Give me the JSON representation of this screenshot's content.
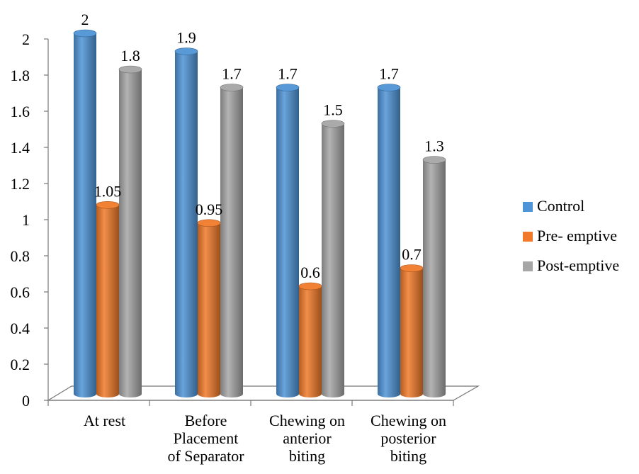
{
  "chart_data": {
    "type": "bar",
    "style": "3d-cylinder",
    "categories": [
      [
        "At rest"
      ],
      [
        "Before",
        "Placement",
        "of Separator"
      ],
      [
        "Chewing on",
        "anterior",
        "biting"
      ],
      [
        "Chewing on",
        "posterior",
        "biting"
      ]
    ],
    "series": [
      {
        "name": "Control",
        "color": "#4f94d6",
        "values": [
          2,
          1.9,
          1.7,
          1.7
        ],
        "labels": [
          "2",
          "1.9",
          "1.7",
          "1.7"
        ]
      },
      {
        "name": "Pre- emptive",
        "color": "#f07a2a",
        "values": [
          1.05,
          0.95,
          0.6,
          0.7
        ],
        "labels": [
          "1.05",
          "0.95",
          "0.6",
          "0.7"
        ]
      },
      {
        "name": "Post-emptive",
        "color": "#a6a6a6",
        "values": [
          1.8,
          1.7,
          1.5,
          1.3
        ],
        "labels": [
          "1.8",
          "1.7",
          "1.5",
          "1.3"
        ]
      }
    ],
    "ylim": [
      0,
      2
    ],
    "yticks": [
      "0",
      "0.2",
      "0.4",
      "0.6",
      "0.8",
      "1",
      "1.2",
      "1.4",
      "1.6",
      "1.8",
      "2"
    ],
    "title": "",
    "xlabel": "",
    "ylabel": "",
    "legend_position": "right",
    "grid": false
  }
}
